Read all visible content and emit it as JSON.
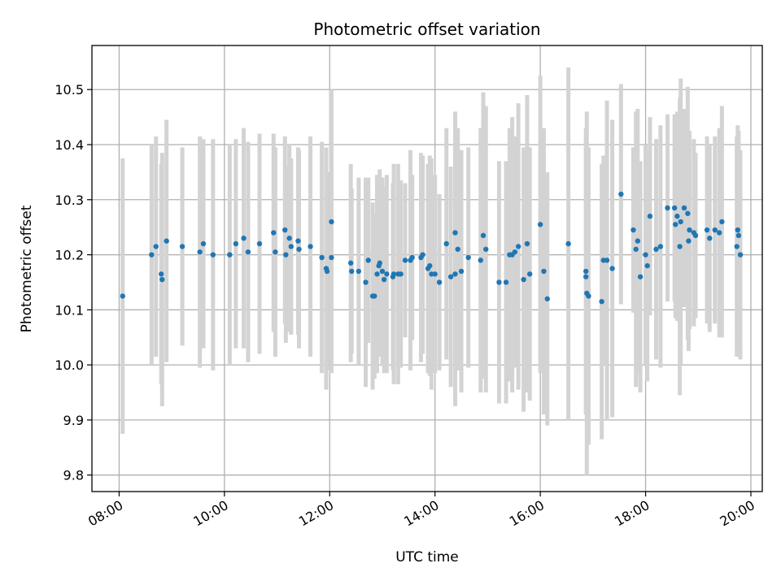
{
  "chart_data": {
    "type": "scatter",
    "title": "Photometric offset variation",
    "xlabel": "UTC time",
    "ylabel": "Photometric offset",
    "x_ticks": [
      "08:00",
      "10:00",
      "12:00",
      "14:00",
      "16:00",
      "18:00",
      "20:00"
    ],
    "y_ticks": [
      "9.8",
      "9.9",
      "10.0",
      "10.1",
      "10.2",
      "10.3",
      "10.4",
      "10.5"
    ],
    "xlim": [
      "07:29",
      "20:13"
    ],
    "ylim": [
      9.77,
      10.58
    ],
    "grid": true,
    "colors": {
      "point": "#1f77b4",
      "errorbar": "#d3d3d3",
      "grid": "#b0b0b0"
    },
    "series": [
      {
        "x": [
          "08:04",
          "08:37",
          "08:42",
          "08:48",
          "08:49",
          "08:54",
          "09:12",
          "09:32",
          "09:36",
          "09:47",
          "10:06",
          "10:13",
          "10:22",
          "10:27",
          "10:40",
          "10:56",
          "10:58",
          "11:09",
          "11:10",
          "11:14",
          "11:16",
          "11:24",
          "11:25",
          "11:38",
          "11:51",
          "11:56",
          "11:57",
          "12:02",
          "12:02",
          "12:24",
          "12:25",
          "12:33",
          "12:41",
          "12:44",
          "12:49",
          "12:51",
          "12:54",
          "12:56",
          "12:57",
          "13:00",
          "13:02",
          "13:05",
          "13:12",
          "13:13",
          "13:18",
          "13:21",
          "13:26",
          "13:32",
          "13:34",
          "13:44",
          "13:46",
          "13:52",
          "13:54",
          "13:56",
          "14:00",
          "14:05",
          "14:13",
          "14:18",
          "14:23",
          "14:23",
          "14:26",
          "14:30",
          "14:38",
          "14:52",
          "14:55",
          "14:58",
          "15:13",
          "15:21",
          "15:25",
          "15:28",
          "15:31",
          "15:35",
          "15:41",
          "15:45",
          "15:48",
          "16:00",
          "16:04",
          "16:08",
          "16:32",
          "16:52",
          "16:52",
          "16:53",
          "16:55",
          "17:10",
          "17:12",
          "17:16",
          "17:22",
          "17:32",
          "17:46",
          "17:49",
          "17:51",
          "17:54",
          "18:00",
          "18:02",
          "18:05",
          "18:12",
          "18:17",
          "18:25",
          "18:33",
          "18:34",
          "18:36",
          "18:39",
          "18:40",
          "18:44",
          "18:48",
          "18:49",
          "18:50",
          "18:55",
          "18:57",
          "19:10",
          "19:13",
          "19:19",
          "19:24",
          "19:27",
          "19:44",
          "19:45",
          "19:46",
          "19:48"
        ],
        "y": [
          10.125,
          10.2,
          10.215,
          10.165,
          10.155,
          10.225,
          10.215,
          10.205,
          10.22,
          10.2,
          10.2,
          10.22,
          10.23,
          10.205,
          10.22,
          10.24,
          10.205,
          10.245,
          10.2,
          10.23,
          10.215,
          10.225,
          10.21,
          10.215,
          10.195,
          10.175,
          10.17,
          10.26,
          10.195,
          10.185,
          10.17,
          10.17,
          10.15,
          10.19,
          10.125,
          10.125,
          10.165,
          10.18,
          10.185,
          10.17,
          10.155,
          10.165,
          10.16,
          10.165,
          10.165,
          10.165,
          10.19,
          10.19,
          10.195,
          10.195,
          10.2,
          10.175,
          10.18,
          10.165,
          10.165,
          10.15,
          10.22,
          10.16,
          10.165,
          10.24,
          10.21,
          10.17,
          10.195,
          10.19,
          10.235,
          10.21,
          10.15,
          10.15,
          10.2,
          10.2,
          10.205,
          10.215,
          10.155,
          10.22,
          10.165,
          10.255,
          10.17,
          10.12,
          10.22,
          10.16,
          10.17,
          10.13,
          10.125,
          10.115,
          10.19,
          10.19,
          10.175,
          10.31,
          10.245,
          10.21,
          10.225,
          10.16,
          10.2,
          10.18,
          10.27,
          10.21,
          10.215,
          10.285,
          10.285,
          10.255,
          10.27,
          10.215,
          10.26,
          10.285,
          10.275,
          10.225,
          10.245,
          10.24,
          10.235,
          10.245,
          10.23,
          10.245,
          10.24,
          10.26,
          10.215,
          10.245,
          10.235,
          10.2
        ],
        "err": [
          0.25,
          0.2,
          0.2,
          0.2,
          0.23,
          0.22,
          0.18,
          0.21,
          0.19,
          0.21,
          0.2,
          0.19,
          0.2,
          0.2,
          0.2,
          0.18,
          0.19,
          0.17,
          0.16,
          0.17,
          0.16,
          0.17,
          0.18,
          0.2,
          0.21,
          0.22,
          0.18,
          0.24,
          0.21,
          0.18,
          0.15,
          0.17,
          0.19,
          0.15,
          0.17,
          0.15,
          0.18,
          0.16,
          0.17,
          0.17,
          0.17,
          0.18,
          0.17,
          0.2,
          0.2,
          0.17,
          0.14,
          0.2,
          0.15,
          0.19,
          0.18,
          0.19,
          0.2,
          0.21,
          0.18,
          0.16,
          0.21,
          0.2,
          0.24,
          0.22,
          0.22,
          0.22,
          0.2,
          0.24,
          0.26,
          0.26,
          0.22,
          0.22,
          0.23,
          0.25,
          0.21,
          0.26,
          0.24,
          0.27,
          0.23,
          0.27,
          0.26,
          0.23,
          0.32,
          0.25,
          0.26,
          0.33,
          0.27,
          0.25,
          0.19,
          0.29,
          0.27,
          0.2,
          0.15,
          0.25,
          0.24,
          0.21,
          0.2,
          0.21,
          0.18,
          0.2,
          0.22,
          0.17,
          0.17,
          0.17,
          0.19,
          0.27,
          0.26,
          0.18,
          0.23,
          0.2,
          0.18,
          0.17,
          0.15,
          0.17,
          0.17,
          0.17,
          0.19,
          0.21,
          0.2,
          0.19,
          0.19,
          0.19
        ]
      }
    ]
  }
}
